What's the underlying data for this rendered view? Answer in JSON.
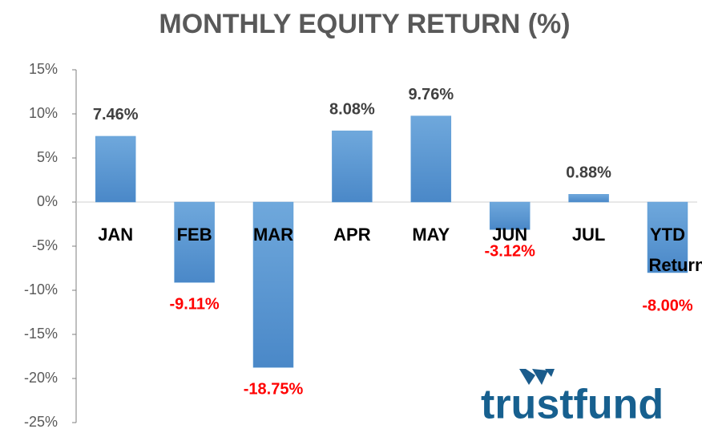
{
  "chart_data": {
    "type": "bar",
    "title": "MONTHLY EQUITY RETURN (%)",
    "categories": [
      "JAN",
      "FEB",
      "MAR",
      "APR",
      "MAY",
      "JUN",
      "JUL",
      "YTD Return"
    ],
    "values": [
      7.46,
      -9.11,
      -18.75,
      8.08,
      9.76,
      -3.12,
      0.88,
      -8.0
    ],
    "value_labels": [
      "7.46%",
      "-9.11%",
      "-18.75%",
      "8.08%",
      "9.76%",
      "-3.12%",
      "0.88%",
      "-8.00%"
    ],
    "color": "#5b9bd5",
    "ylim": [
      -25,
      15
    ],
    "yticks": [
      {
        "value": -25,
        "label": "-25%"
      },
      {
        "value": -20,
        "label": "-20%"
      },
      {
        "value": -15,
        "label": "-15%"
      },
      {
        "value": -10,
        "label": "-10%"
      },
      {
        "value": -5,
        "label": "-5%"
      },
      {
        "value": 0,
        "label": "0%"
      },
      {
        "value": 5,
        "label": "5%"
      },
      {
        "value": 10,
        "label": "10%"
      },
      {
        "value": 15,
        "label": "15%"
      }
    ],
    "grid": false,
    "logo": "trustfund"
  }
}
